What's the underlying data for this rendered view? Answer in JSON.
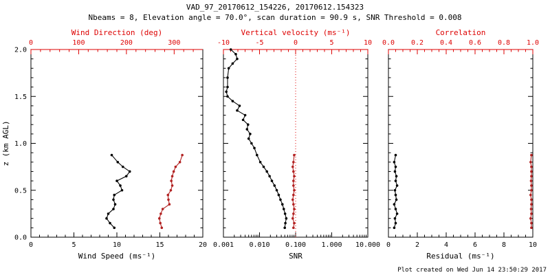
{
  "header": {
    "title": "VAD_97_20170612_154226, 20170612.154323",
    "subtitle": "Nbeams = 8, Elevation angle = 70.0°, scan duration = 90.9 s, SNR Threshold = 0.008"
  },
  "footer": {
    "created": "Plot created on Wed Jun 14 23:50:29 2017"
  },
  "colors": {
    "axis_red": "#dd0000",
    "series_red": "#b22222",
    "black": "#000000"
  },
  "chart_data": [
    {
      "type": "line",
      "name": "wind-panel",
      "y_axis": {
        "label": "z (km AGL)",
        "min": 0,
        "max": 2,
        "ticks": [
          0,
          0.5,
          1,
          1.5,
          2
        ],
        "tick_labels": [
          "0.0",
          "0.5",
          "1.0",
          "1.5",
          "2.0"
        ],
        "minor_step": 0.1,
        "show_labels": true
      },
      "x_bottom": {
        "label": "Wind Speed (ms⁻¹)",
        "min": 0,
        "max": 20,
        "ticks": [
          0,
          5,
          10,
          15,
          20
        ],
        "tick_labels": [
          "0",
          "5",
          "10",
          "15",
          "20"
        ],
        "minor_step": 1
      },
      "x_top": {
        "label": "Wind Direction (deg)",
        "min": 0,
        "max": 360,
        "ticks": [
          0,
          100,
          200,
          300
        ],
        "tick_labels": [
          "0",
          "100",
          "200",
          "300"
        ],
        "minor_step": 20,
        "color": "red"
      },
      "series": [
        {
          "name": "wind-speed",
          "axis": "bottom",
          "color": "black",
          "z": [
            0.1,
            0.15,
            0.2,
            0.25,
            0.3,
            0.35,
            0.4,
            0.45,
            0.5,
            0.55,
            0.6,
            0.65,
            0.7,
            0.75,
            0.8,
            0.875
          ],
          "values": [
            9.7,
            9.2,
            8.8,
            9.0,
            9.6,
            9.8,
            9.6,
            9.7,
            10.6,
            10.4,
            10.0,
            11.1,
            11.5,
            10.7,
            10.1,
            9.4
          ]
        },
        {
          "name": "wind-direction",
          "axis": "top",
          "color": "red",
          "z": [
            0.1,
            0.15,
            0.2,
            0.25,
            0.3,
            0.35,
            0.4,
            0.45,
            0.5,
            0.55,
            0.6,
            0.65,
            0.7,
            0.75,
            0.8,
            0.875
          ],
          "values": [
            274,
            271,
            269,
            272,
            276,
            290,
            288,
            287,
            293,
            296,
            294,
            296,
            299,
            303,
            312,
            317
          ]
        }
      ]
    },
    {
      "type": "line",
      "name": "snr-panel",
      "y_axis": {
        "label": "",
        "min": 0,
        "max": 2,
        "ticks": [
          0,
          0.5,
          1,
          1.5,
          2
        ],
        "tick_labels": [
          "0.0",
          "0.5",
          "1.0",
          "1.5",
          "2.0"
        ],
        "minor_step": 0.1,
        "show_labels": false
      },
      "x_bottom": {
        "label": "SNR",
        "min": 0.001,
        "max": 10,
        "log": true,
        "ticks": [
          0.001,
          0.01,
          0.1,
          1,
          10
        ],
        "tick_labels": [
          "0.001",
          "0.010",
          "0.100",
          "1.000",
          "10.000"
        ]
      },
      "x_top": {
        "label": "Vertical velocity (ms⁻¹)",
        "min": -10,
        "max": 10,
        "ticks": [
          -10,
          -5,
          0,
          5,
          10
        ],
        "tick_labels": [
          "-10",
          "-5",
          "0",
          "5",
          "10"
        ],
        "minor_step": 1,
        "color": "red"
      },
      "ref_line": {
        "axis": "top",
        "value": 0,
        "style": "dotted",
        "color": "red"
      },
      "series": [
        {
          "name": "snr",
          "axis": "bottom",
          "color": "black",
          "z": [
            0.1,
            0.15,
            0.2,
            0.25,
            0.3,
            0.35,
            0.4,
            0.45,
            0.5,
            0.55,
            0.6,
            0.65,
            0.7,
            0.75,
            0.8,
            0.875,
            0.95,
            1.0,
            1.05,
            1.1,
            1.15,
            1.2,
            1.25,
            1.3,
            1.35,
            1.4,
            1.45,
            1.5,
            1.55,
            1.6,
            1.7,
            1.8,
            1.85,
            1.9,
            1.95,
            2.0
          ],
          "values": [
            0.05,
            0.052,
            0.055,
            0.051,
            0.047,
            0.043,
            0.038,
            0.034,
            0.03,
            0.026,
            0.022,
            0.019,
            0.016,
            0.013,
            0.0105,
            0.0085,
            0.0072,
            0.006,
            0.005,
            0.0055,
            0.0045,
            0.0048,
            0.0035,
            0.004,
            0.0024,
            0.0028,
            0.0018,
            0.0013,
            0.0012,
            0.0013,
            0.0013,
            0.0014,
            0.0018,
            0.0024,
            0.0022,
            0.0016
          ]
        },
        {
          "name": "vertical-velocity",
          "axis": "top",
          "color": "red",
          "z": [
            0.1,
            0.15,
            0.2,
            0.25,
            0.3,
            0.35,
            0.4,
            0.45,
            0.5,
            0.55,
            0.6,
            0.65,
            0.7,
            0.75,
            0.8,
            0.875
          ],
          "values": [
            -0.3,
            -0.2,
            -0.4,
            -0.3,
            -0.2,
            -0.3,
            -0.4,
            -0.3,
            -0.2,
            -0.3,
            -0.3,
            -0.2,
            -0.3,
            -0.4,
            -0.3,
            -0.2
          ]
        }
      ]
    },
    {
      "type": "line",
      "name": "residual-panel",
      "y_axis": {
        "label": "",
        "min": 0,
        "max": 2,
        "ticks": [
          0,
          0.5,
          1,
          1.5,
          2
        ],
        "tick_labels": [
          "0.0",
          "0.5",
          "1.0",
          "1.5",
          "2.0"
        ],
        "minor_step": 0.1,
        "show_labels": false
      },
      "x_bottom": {
        "label": "Residual (ms⁻¹)",
        "min": 0,
        "max": 10,
        "ticks": [
          0,
          2,
          4,
          6,
          8,
          10
        ],
        "tick_labels": [
          "0",
          "2",
          "4",
          "6",
          "8",
          "10"
        ],
        "minor_step": 0.5
      },
      "x_top": {
        "label": "Correlation",
        "min": 0,
        "max": 1,
        "ticks": [
          0,
          0.2,
          0.4,
          0.6,
          0.8,
          1
        ],
        "tick_labels": [
          "0.0",
          "0.2",
          "0.4",
          "0.6",
          "0.8",
          "1.0"
        ],
        "minor_step": 0.05,
        "color": "red"
      },
      "series": [
        {
          "name": "residual",
          "axis": "bottom",
          "color": "black",
          "z": [
            0.1,
            0.15,
            0.2,
            0.25,
            0.3,
            0.35,
            0.4,
            0.45,
            0.5,
            0.55,
            0.6,
            0.65,
            0.7,
            0.75,
            0.8,
            0.875
          ],
          "values": [
            0.4,
            0.5,
            0.45,
            0.6,
            0.5,
            0.4,
            0.55,
            0.5,
            0.45,
            0.6,
            0.5,
            0.55,
            0.45,
            0.5,
            0.4,
            0.5
          ]
        },
        {
          "name": "correlation",
          "axis": "top",
          "color": "red",
          "z": [
            0.1,
            0.15,
            0.2,
            0.25,
            0.3,
            0.35,
            0.4,
            0.45,
            0.5,
            0.55,
            0.6,
            0.65,
            0.7,
            0.75,
            0.8,
            0.875
          ],
          "values": [
            0.99,
            0.99,
            0.985,
            0.99,
            0.988,
            0.99,
            0.99,
            0.985,
            0.99,
            0.99,
            0.988,
            0.99,
            0.99,
            0.99,
            0.985,
            0.99
          ]
        }
      ]
    }
  ]
}
